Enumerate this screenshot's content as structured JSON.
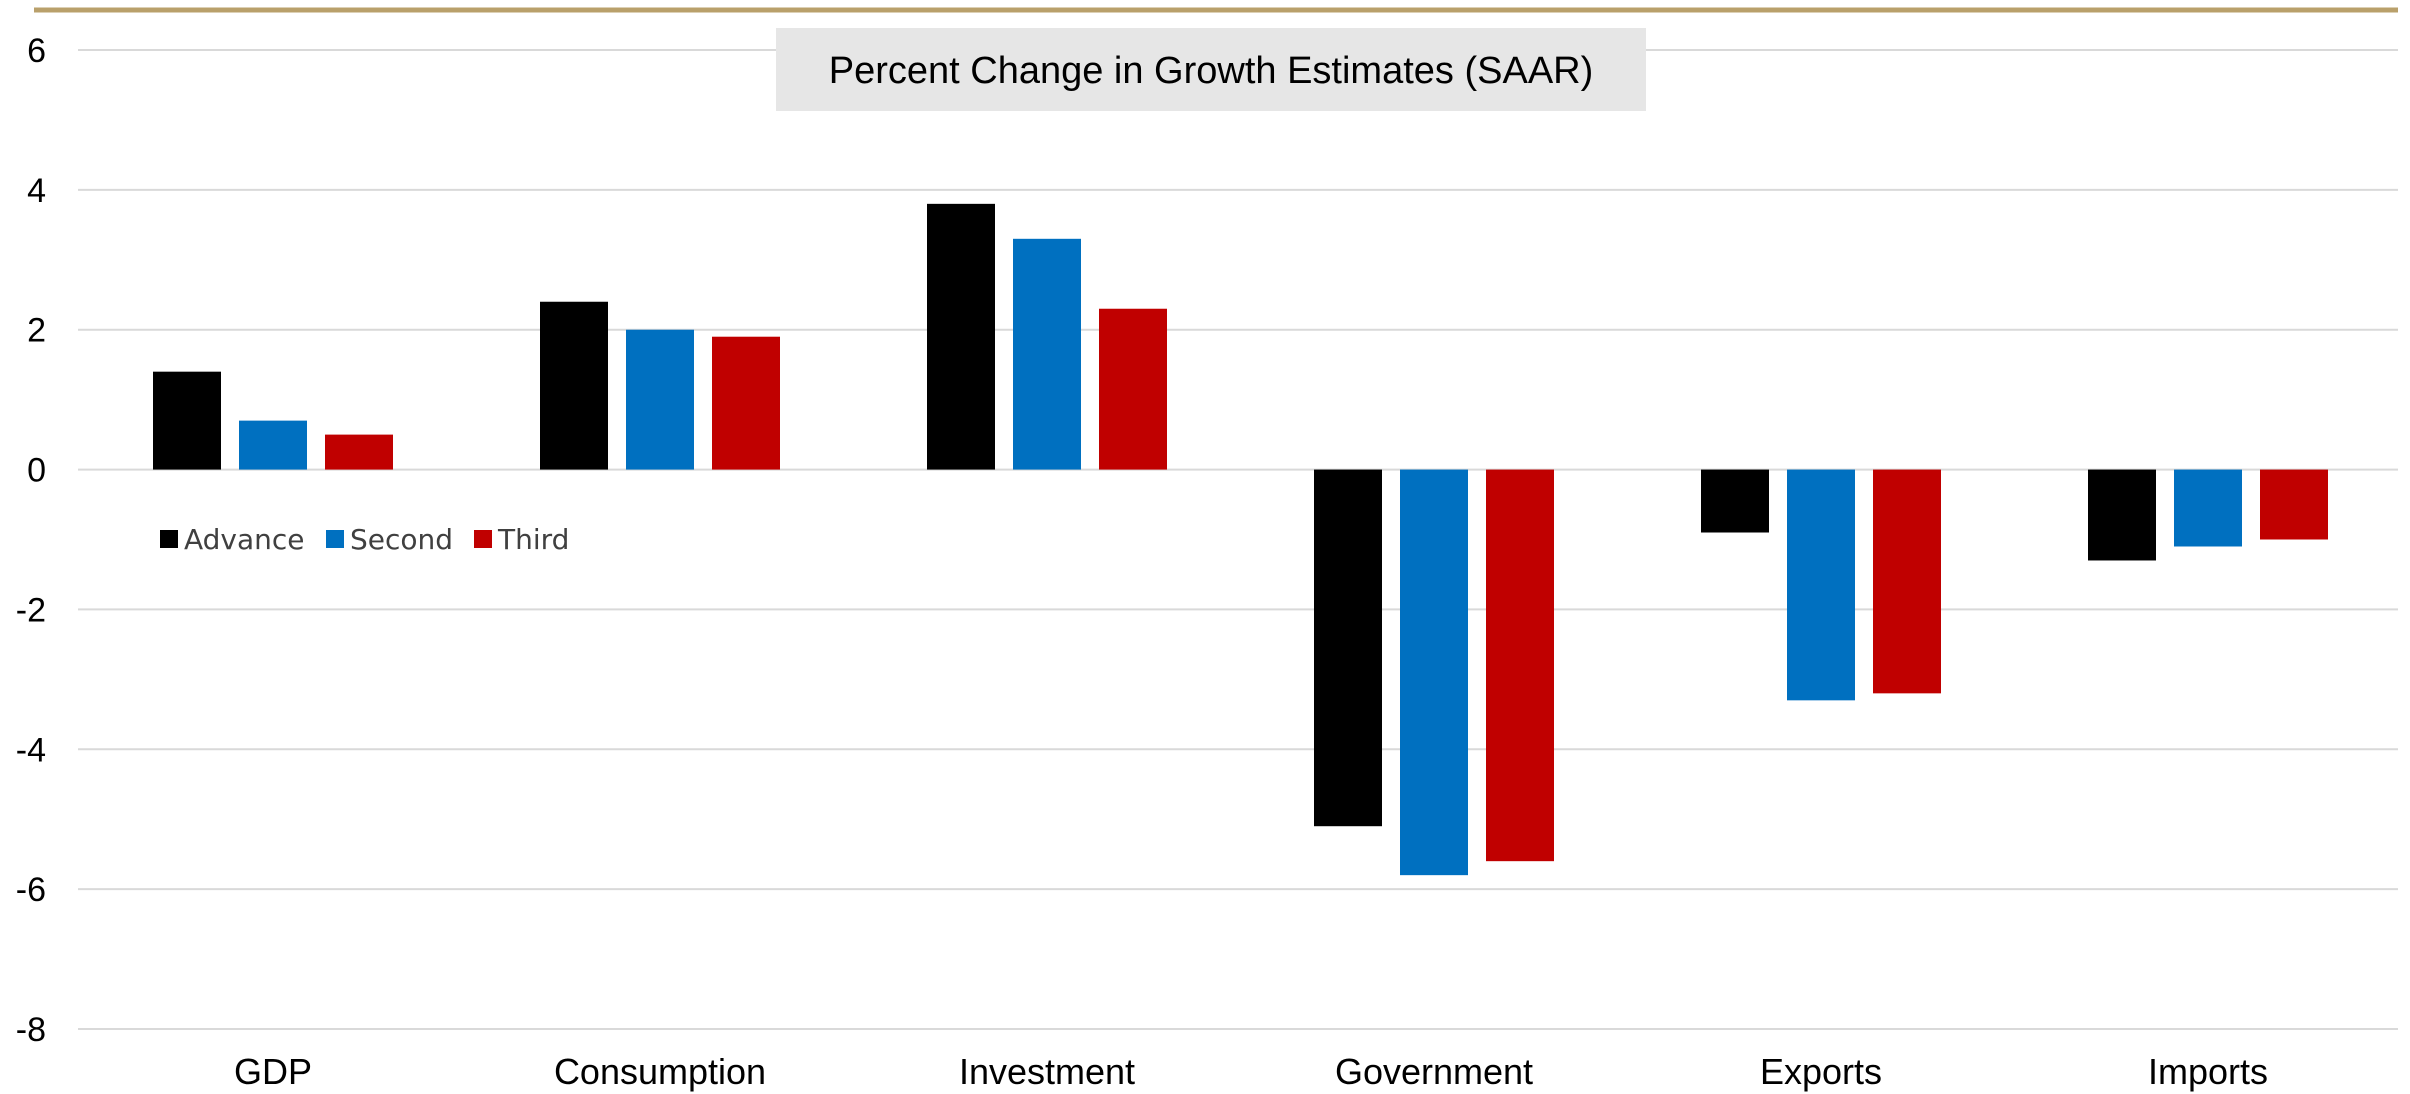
{
  "colors": {
    "top_rule": "#b9a06b",
    "gridline": "#d9d9d9",
    "title_box": "#e6e6e6",
    "advance": "#000000",
    "second": "#0070c0",
    "third": "#c00000"
  },
  "chart_data": {
    "type": "bar",
    "title": "Percent Change in Growth Estimates (SAAR)",
    "xlabel": "",
    "ylabel": "",
    "categories": [
      "GDP",
      "Consumption",
      "Investment",
      "Government",
      "Exports",
      "Imports"
    ],
    "series": [
      {
        "name": "Advance",
        "color": "#000000",
        "values": [
          1.4,
          2.4,
          3.8,
          -5.1,
          -0.9,
          -1.3
        ]
      },
      {
        "name": "Second",
        "color": "#0070c0",
        "values": [
          0.7,
          2.0,
          3.3,
          -5.8,
          -3.3,
          -1.1
        ]
      },
      {
        "name": "Third",
        "color": "#c00000",
        "values": [
          0.5,
          1.9,
          2.3,
          -5.6,
          -3.2,
          -1.0
        ]
      }
    ],
    "ylim": [
      -8,
      6
    ],
    "yticks": [
      6,
      4,
      2,
      0,
      -2,
      -4,
      -6,
      -8
    ],
    "grid": true,
    "legend_position": "left, below zero line"
  }
}
